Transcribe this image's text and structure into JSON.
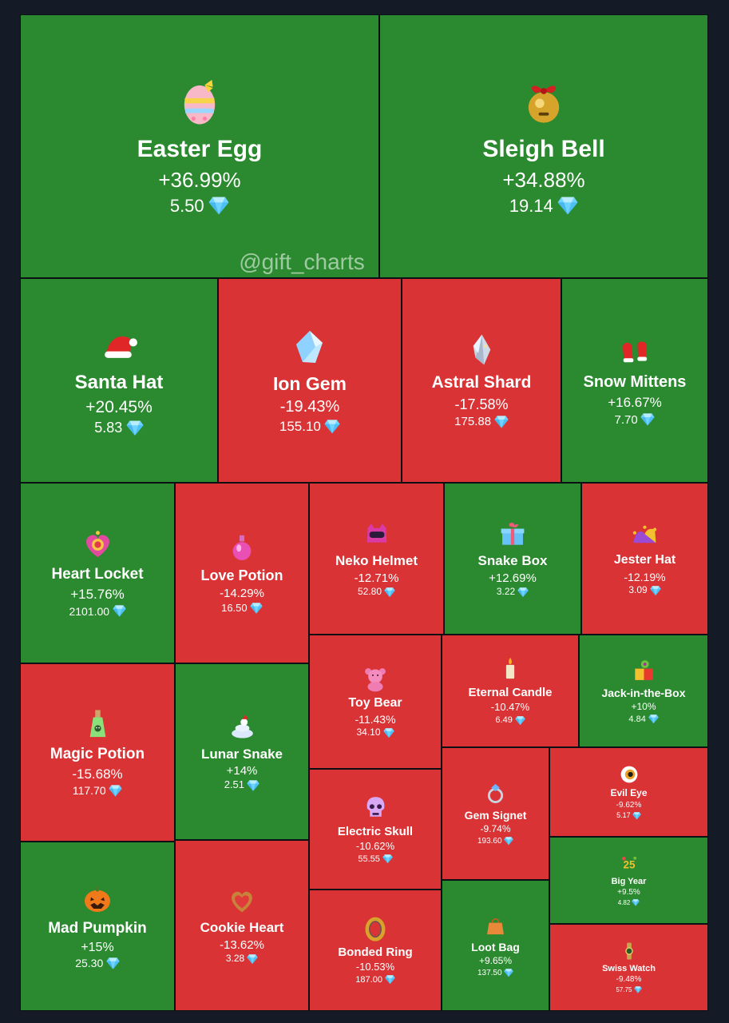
{
  "watermark": "@gift_charts",
  "colors": {
    "positive": "#2b8a2f",
    "negative": "#d93336",
    "background": "#141a26",
    "diamond": "#6fd3ff"
  },
  "chart_data": {
    "type": "treemap",
    "tiles": [
      {
        "name": "Easter Egg",
        "change": "+36.99%",
        "change_value": 36.99,
        "price": "5.50",
        "icon": "easter-egg-icon"
      },
      {
        "name": "Sleigh Bell",
        "change": "+34.88%",
        "change_value": 34.88,
        "price": "19.14",
        "icon": "sleigh-bell-icon"
      },
      {
        "name": "Santa Hat",
        "change": "+20.45%",
        "change_value": 20.45,
        "price": "5.83",
        "icon": "santa-hat-icon"
      },
      {
        "name": "Ion Gem",
        "change": "-19.43%",
        "change_value": -19.43,
        "price": "155.10",
        "icon": "ion-gem-icon"
      },
      {
        "name": "Astral Shard",
        "change": "-17.58%",
        "change_value": -17.58,
        "price": "175.88",
        "icon": "astral-shard-icon"
      },
      {
        "name": "Snow Mittens",
        "change": "+16.67%",
        "change_value": 16.67,
        "price": "7.70",
        "icon": "snow-mittens-icon"
      },
      {
        "name": "Heart Locket",
        "change": "+15.76%",
        "change_value": 15.76,
        "price": "2101.00",
        "icon": "heart-locket-icon"
      },
      {
        "name": "Love Potion",
        "change": "-14.29%",
        "change_value": -14.29,
        "price": "16.50",
        "icon": "love-potion-icon"
      },
      {
        "name": "Neko Helmet",
        "change": "-12.71%",
        "change_value": -12.71,
        "price": "52.80",
        "icon": "neko-helmet-icon"
      },
      {
        "name": "Snake Box",
        "change": "+12.69%",
        "change_value": 12.69,
        "price": "3.22",
        "icon": "snake-box-icon"
      },
      {
        "name": "Jester Hat",
        "change": "-12.19%",
        "change_value": -12.19,
        "price": "3.09",
        "icon": "jester-hat-icon"
      },
      {
        "name": "Magic Potion",
        "change": "-15.68%",
        "change_value": -15.68,
        "price": "117.70",
        "icon": "magic-potion-icon"
      },
      {
        "name": "Lunar Snake",
        "change": "+14%",
        "change_value": 14,
        "price": "2.51",
        "icon": "lunar-snake-icon"
      },
      {
        "name": "Toy Bear",
        "change": "-11.43%",
        "change_value": -11.43,
        "price": "34.10",
        "icon": "toy-bear-icon"
      },
      {
        "name": "Eternal Candle",
        "change": "-10.47%",
        "change_value": -10.47,
        "price": "6.49",
        "icon": "eternal-candle-icon"
      },
      {
        "name": "Jack-in-the-Box",
        "change": "+10%",
        "change_value": 10,
        "price": "4.84",
        "icon": "jack-in-the-box-icon"
      },
      {
        "name": "Electric Skull",
        "change": "-10.62%",
        "change_value": -10.62,
        "price": "55.55",
        "icon": "electric-skull-icon"
      },
      {
        "name": "Gem Signet",
        "change": "-9.74%",
        "change_value": -9.74,
        "price": "193.60",
        "icon": "gem-signet-icon"
      },
      {
        "name": "Evil Eye",
        "change": "-9.62%",
        "change_value": -9.62,
        "price": "5.17",
        "icon": "evil-eye-icon"
      },
      {
        "name": "Big Year",
        "change": "+9.5%",
        "change_value": 9.5,
        "price": "4.82",
        "icon": "big-year-icon"
      },
      {
        "name": "Mad Pumpkin",
        "change": "+15%",
        "change_value": 15,
        "price": "25.30",
        "icon": "mad-pumpkin-icon"
      },
      {
        "name": "Cookie Heart",
        "change": "-13.62%",
        "change_value": -13.62,
        "price": "3.28",
        "icon": "cookie-heart-icon"
      },
      {
        "name": "Bonded Ring",
        "change": "-10.53%",
        "change_value": -10.53,
        "price": "187.00",
        "icon": "bonded-ring-icon"
      },
      {
        "name": "Loot Bag",
        "change": "+9.65%",
        "change_value": 9.65,
        "price": "137.50",
        "icon": "loot-bag-icon"
      },
      {
        "name": "Swiss Watch",
        "change": "-9.48%",
        "change_value": -9.48,
        "price": "57.75",
        "icon": "swiss-watch-icon"
      }
    ]
  }
}
